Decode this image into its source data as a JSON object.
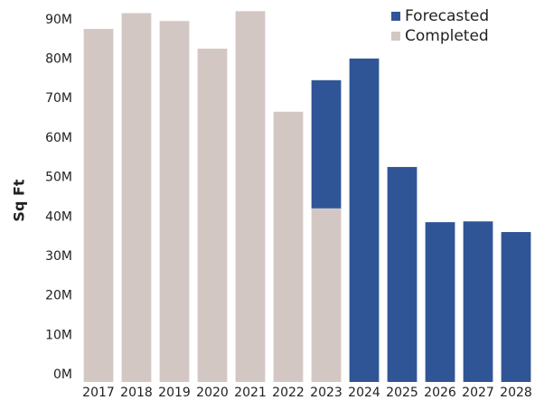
{
  "chart_data": {
    "type": "stacked-bar",
    "y_label": "Sq Ft",
    "categories": [
      "2017",
      "2018",
      "2019",
      "2020",
      "2021",
      "2022",
      "2023",
      "2024",
      "2025",
      "2026",
      "2027",
      "2028"
    ],
    "series": [
      {
        "name": "Completed",
        "color": "#d3c7c4",
        "values": [
          89.5,
          93.5,
          91.5,
          84.5,
          94,
          68.5,
          44,
          null,
          null,
          null,
          null,
          null
        ]
      },
      {
        "name": "Forecasted",
        "color": "#2f5597",
        "values": [
          null,
          null,
          null,
          null,
          null,
          null,
          32.5,
          82,
          54.5,
          40.5,
          40.7,
          38
        ]
      }
    ],
    "ylim": [
      0,
      95
    ],
    "yticks": [
      {
        "value": 0,
        "label": "0M"
      },
      {
        "value": 10,
        "label": "10M"
      },
      {
        "value": 20,
        "label": "20M"
      },
      {
        "value": 30,
        "label": "30M"
      },
      {
        "value": 40,
        "label": "40M"
      },
      {
        "value": 50,
        "label": "50M"
      },
      {
        "value": 60,
        "label": "60M"
      },
      {
        "value": 70,
        "label": "70M"
      },
      {
        "value": 80,
        "label": "80M"
      },
      {
        "value": 90,
        "label": "90M"
      }
    ],
    "grid": false,
    "legend": "top-right"
  }
}
